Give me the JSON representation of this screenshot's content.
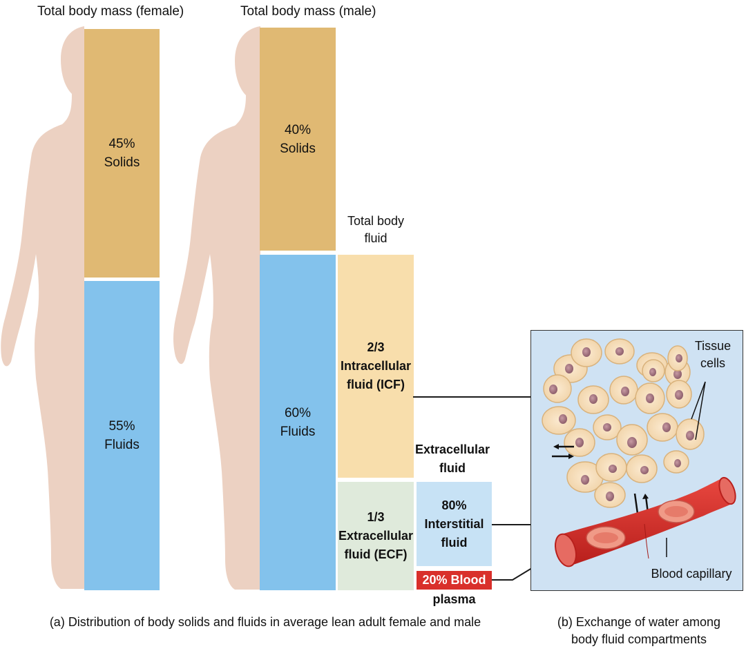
{
  "female": {
    "title": "Total body mass (female)",
    "solids_pct": "45%",
    "solids_label": "Solids",
    "fluids_pct": "55%",
    "fluids_label": "Fluids"
  },
  "male": {
    "title": "Total body mass (male)",
    "solids_pct": "40%",
    "solids_label": "Solids",
    "fluids_pct": "60%",
    "fluids_label": "Fluids"
  },
  "total_body_fluid": {
    "line1": "Total body",
    "line2": "fluid"
  },
  "icf": {
    "fraction": "2/3",
    "line1": "Intracellular",
    "line2": "fluid (ICF)"
  },
  "ecf": {
    "fraction": "1/3",
    "line1": "Extracellular",
    "line2": "fluid (ECF)"
  },
  "extracellular_fluid": {
    "line1": "Extracellular",
    "line2": "fluid"
  },
  "interstitial": {
    "pct": "80%",
    "line1": "Interstitial",
    "line2": "fluid"
  },
  "plasma": {
    "pct_label": "20% Blood",
    "line2": "plasma"
  },
  "panel_b": {
    "tissue_cells_line1": "Tissue",
    "tissue_cells_line2": "cells",
    "blood_capillary": "Blood capillary"
  },
  "captions": {
    "a": "(a) Distribution of body solids and fluids in average lean adult female and male",
    "b_line1": "(b) Exchange of water among",
    "b_line2": "body fluid compartments"
  },
  "colors": {
    "solids": "#e0b973",
    "fluids": "#83c2ec",
    "icf": "#f8deac",
    "ecf": "#dfeadb",
    "interstitial": "#c7e2f5",
    "plasma": "#d9302b",
    "skin": "#ecd1c2",
    "panel_bg": "#cfe2f3"
  }
}
